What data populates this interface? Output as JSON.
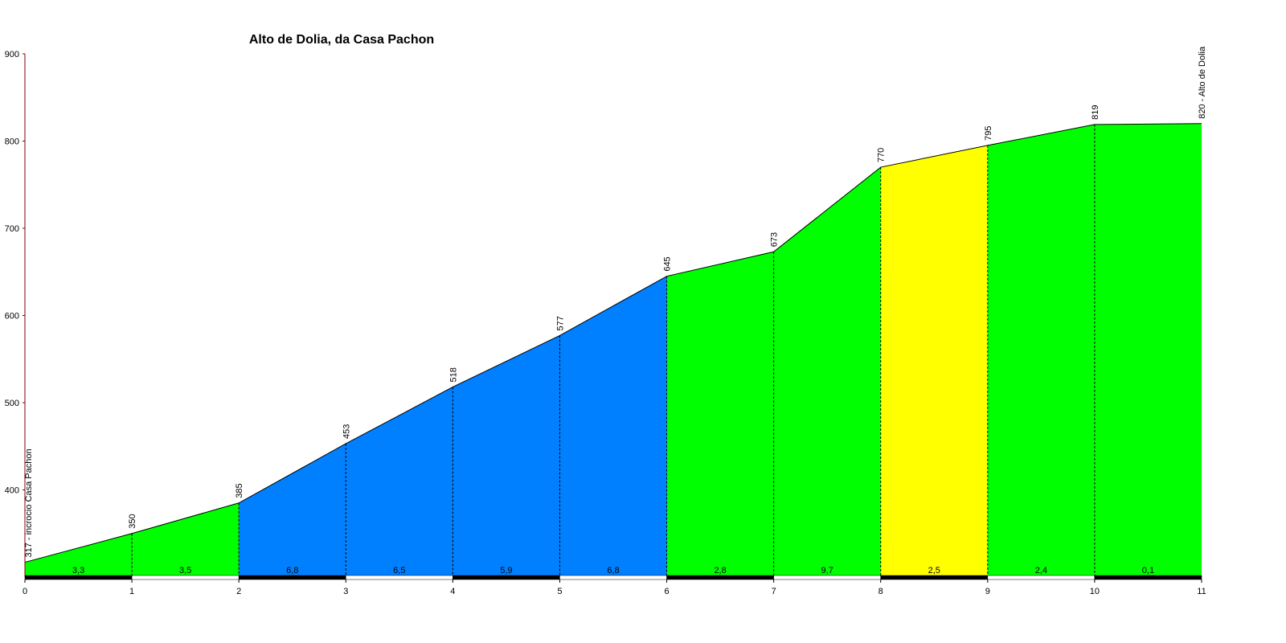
{
  "chart_data": {
    "type": "profile",
    "title": "Alto de Dolia, da Casa Pachon",
    "x": [
      0,
      1,
      2,
      3,
      4,
      5,
      6,
      7,
      8,
      9,
      10,
      11
    ],
    "series": [
      {
        "values": [
          317,
          350,
          385,
          453,
          518,
          577,
          645,
          673,
          770,
          795,
          819,
          820
        ],
        "value_labels": [
          "317 - incrocio Casa Pachon",
          "350",
          "385",
          "453",
          "518",
          "577",
          "645",
          "673",
          "770",
          "795",
          "819",
          "820 - Alto de Dolia"
        ]
      }
    ],
    "segment_labels": [
      "3,3",
      "3,5",
      "6,8",
      "6,5",
      "5,9",
      "6,8",
      "2,8",
      "9,7",
      "2,5",
      "2,4",
      "0,1"
    ],
    "segment_colors": [
      "#00ff00",
      "#00ff00",
      "#0080ff",
      "#0080ff",
      "#0080ff",
      "#0080ff",
      "#00ff00",
      "#00ff00",
      "#ffff00",
      "#00ff00",
      "#00ff00"
    ],
    "xlim": [
      0,
      11
    ],
    "xticks": [
      0,
      1,
      2,
      3,
      4,
      5,
      6,
      7,
      8,
      9,
      10,
      11
    ],
    "ylim": [
      300,
      900
    ],
    "yticks": [
      400,
      500,
      600,
      700,
      800,
      900
    ]
  }
}
